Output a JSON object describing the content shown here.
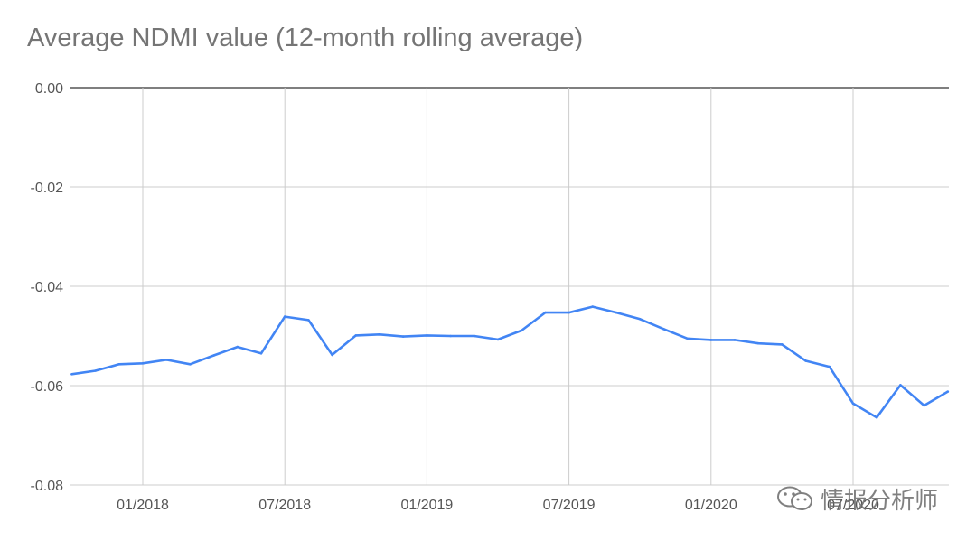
{
  "chart_data": {
    "type": "line",
    "title": "Average NDMI value (12-month rolling average)",
    "xlabel": "",
    "ylabel": "",
    "ylim": [
      -0.08,
      0.0
    ],
    "yticks": [
      "0.00",
      "-0.02",
      "-0.04",
      "-0.06",
      "-0.08"
    ],
    "ytick_values": [
      0.0,
      -0.02,
      -0.04,
      -0.06,
      -0.08
    ],
    "xticks": [
      "01/2018",
      "07/2018",
      "01/2019",
      "07/2019",
      "01/2020",
      "07/2020"
    ],
    "grid": true,
    "legend": "none",
    "line_color": "#4285f4",
    "series": [
      {
        "x": [
          "2017-10",
          "2017-11",
          "2017-12",
          "2018-01",
          "2018-02",
          "2018-03",
          "2018-04",
          "2018-05",
          "2018-06",
          "2018-07",
          "2018-08",
          "2018-09",
          "2018-10",
          "2018-11",
          "2018-12",
          "2019-01",
          "2019-02",
          "2019-03",
          "2019-04",
          "2019-05",
          "2019-06",
          "2019-07",
          "2019-08",
          "2019-09",
          "2019-10",
          "2019-11",
          "2019-12",
          "2020-01",
          "2020-02",
          "2020-03",
          "2020-04",
          "2020-05",
          "2020-06",
          "2020-07",
          "2020-08",
          "2020-09",
          "2020-10",
          "2020-11"
        ],
        "values": [
          -0.0577,
          -0.057,
          -0.0557,
          -0.0555,
          -0.0548,
          -0.0557,
          -0.0539,
          -0.0522,
          -0.0535,
          -0.0461,
          -0.0468,
          -0.0538,
          -0.0499,
          -0.0497,
          -0.0501,
          -0.0499,
          -0.05,
          -0.05,
          -0.0507,
          -0.0489,
          -0.0453,
          -0.0453,
          -0.0441,
          -0.0453,
          -0.0466,
          -0.0486,
          -0.0505,
          -0.0508,
          -0.0508,
          -0.0515,
          -0.0517,
          -0.055,
          -0.0562,
          -0.0636,
          -0.0664,
          -0.0599,
          -0.064,
          -0.0612
        ]
      }
    ]
  },
  "watermark": {
    "text": "情报分析师",
    "icon": "wechat-icon"
  }
}
